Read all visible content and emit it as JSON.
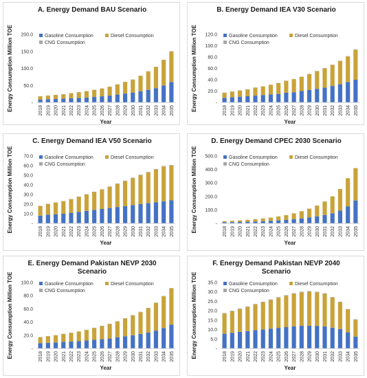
{
  "colors": {
    "gasoline": "#4472C4",
    "diesel": "#C9A33A",
    "cng": "#A6A6A6"
  },
  "chart_data": [
    {
      "type": "bar",
      "stacked": true,
      "title": "A. Energy Demand BAU Scenario",
      "ylabel": "Energy Consumption Million TOE",
      "xlabel": "Year",
      "categories": [
        "2018",
        "2019",
        "2020",
        "2021",
        "2022",
        "2023",
        "2024",
        "2025",
        "2026",
        "2027",
        "2028",
        "2029",
        "2030",
        "2031",
        "2032",
        "2033",
        "2034",
        "2035"
      ],
      "yticks": [
        "-",
        "50.0",
        "100.0",
        "150.0",
        "200.0"
      ],
      "ylim": [
        0,
        200
      ],
      "legend": "top-left",
      "series": [
        {
          "name": "Gasoline Consumption",
          "color": "#4472C4",
          "values": [
            8,
            9,
            10,
            11,
            12,
            13,
            14,
            16,
            18,
            20,
            23,
            26,
            29,
            33,
            37,
            42,
            50,
            60
          ]
        },
        {
          "name": "Diesel Consumption",
          "color": "#C9A33A",
          "values": [
            10,
            11,
            12,
            13,
            15,
            17,
            19,
            21,
            23,
            26,
            30,
            34,
            38,
            45,
            54,
            62,
            75,
            90
          ]
        },
        {
          "name": "CNG Consumption",
          "color": "#A6A6A6",
          "values": [
            0.3,
            0.3,
            0.3,
            0.3,
            0.3,
            0.3,
            0.3,
            0.4,
            0.4,
            0.4,
            0.4,
            0.4,
            0.5,
            0.5,
            0.5,
            0.5,
            0.6,
            0.6
          ]
        }
      ]
    },
    {
      "type": "bar",
      "stacked": true,
      "title": "B. Energy Demand IEA V30 Scenario",
      "ylabel": "Energy Consumption Million TOE",
      "xlabel": "Year",
      "categories": [
        "2018",
        "2019",
        "2020",
        "2021",
        "2022",
        "2023",
        "2024",
        "2025",
        "2026",
        "2027",
        "2028",
        "2029",
        "2030",
        "2031",
        "2032",
        "2033",
        "2034",
        "2035"
      ],
      "yticks": [
        "-",
        "20.0",
        "40.0",
        "60.0",
        "80.0",
        "100.0",
        "120.0"
      ],
      "ylim": [
        0,
        120
      ],
      "legend": "top-left",
      "series": [
        {
          "name": "Gasoline Consumption",
          "color": "#4472C4",
          "values": [
            8,
            9,
            10,
            11,
            12,
            13,
            14,
            15,
            17,
            18,
            20,
            22,
            24,
            26,
            29,
            32,
            36,
            40
          ]
        },
        {
          "name": "Diesel Consumption",
          "color": "#C9A33A",
          "values": [
            9,
            10,
            11,
            12,
            14,
            15,
            17,
            19,
            21,
            23,
            25,
            28,
            31,
            34,
            37,
            41,
            45,
            53
          ]
        },
        {
          "name": "CNG Consumption",
          "color": "#A6A6A6",
          "values": [
            0.3,
            0.3,
            0.3,
            0.3,
            0.3,
            0.3,
            0.3,
            0.4,
            0.4,
            0.4,
            0.4,
            0.4,
            0.5,
            0.5,
            0.5,
            0.5,
            0.6,
            0.6
          ]
        }
      ]
    },
    {
      "type": "bar",
      "stacked": true,
      "title": "C. Energy Demand IEA V50 Scenario",
      "ylabel": "Energy Consumption Million TOE",
      "xlabel": "Year",
      "categories": [
        "2018",
        "2019",
        "2020",
        "2021",
        "2022",
        "2023",
        "2024",
        "2025",
        "2026",
        "2027",
        "2028",
        "2029",
        "2030",
        "2031",
        "2032",
        "2033",
        "2034",
        "2035"
      ],
      "yticks": [
        "-",
        "10.0",
        "20.0",
        "30.0",
        "40.0",
        "50.0",
        "60.0",
        "70.0"
      ],
      "ylim": [
        0,
        70
      ],
      "legend": "top-left",
      "series": [
        {
          "name": "Gasoline Consumption",
          "color": "#4472C4",
          "values": [
            8,
            9,
            9.5,
            10,
            11,
            12,
            13,
            14,
            15,
            16,
            17,
            18,
            19,
            20,
            21,
            22,
            23,
            24
          ]
        },
        {
          "name": "Diesel Consumption",
          "color": "#C9A33A",
          "values": [
            10,
            11,
            12,
            13,
            14,
            15.5,
            17,
            18.5,
            20,
            22,
            24,
            26,
            28,
            30,
            32,
            34,
            36,
            36
          ]
        },
        {
          "name": "CNG Consumption",
          "color": "#A6A6A6",
          "values": [
            0.3,
            0.3,
            0.3,
            0.3,
            0.3,
            0.3,
            0.3,
            0.4,
            0.4,
            0.4,
            0.4,
            0.4,
            0.5,
            0.5,
            0.5,
            0.5,
            0.6,
            0.6
          ]
        }
      ]
    },
    {
      "type": "bar",
      "stacked": true,
      "title": "D. Energy Demand CPEC 2030 Scenario",
      "ylabel": "Energy Consumption Million TOE",
      "xlabel": "Year",
      "categories": [
        "2018",
        "2019",
        "2020",
        "2021",
        "2022",
        "2023",
        "2024",
        "2025",
        "2026",
        "2027",
        "2028",
        "2029",
        "2030",
        "2031",
        "2032",
        "2033",
        "2034",
        "2035"
      ],
      "yticks": [
        "-",
        "100.0",
        "200.0",
        "300.0",
        "400.0",
        "500.0"
      ],
      "ylim": [
        0,
        500
      ],
      "legend": "top-left",
      "series": [
        {
          "name": "Gasoline Consumption",
          "color": "#4472C4",
          "values": [
            8,
            9,
            10,
            12,
            14,
            16,
            19,
            22,
            26,
            31,
            37,
            44,
            52,
            62,
            75,
            95,
            125,
            170
          ]
        },
        {
          "name": "Diesel Consumption",
          "color": "#C9A33A",
          "values": [
            8,
            10,
            12,
            14,
            17,
            20,
            24,
            29,
            35,
            43,
            53,
            65,
            80,
            100,
            125,
            160,
            210,
            240
          ]
        },
        {
          "name": "CNG Consumption",
          "color": "#A6A6A6",
          "values": [
            0.3,
            0.3,
            0.3,
            0.3,
            0.3,
            0.3,
            0.3,
            0.4,
            0.4,
            0.4,
            0.4,
            0.4,
            0.5,
            0.5,
            0.5,
            0.5,
            0.6,
            0.6
          ]
        }
      ]
    },
    {
      "type": "bar",
      "stacked": true,
      "title": "E. Energy Demand Pakistan NEVP 2030 Scenario",
      "title_lines": [
        "E. Energy Demand Pakistan NEVP 2030",
        "Scenario"
      ],
      "ylabel": "Energy Consumption Million TOE",
      "xlabel": "Year",
      "categories": [
        "2018",
        "2019",
        "2020",
        "2021",
        "2022",
        "2023",
        "2024",
        "2025",
        "2026",
        "2027",
        "2028",
        "2029",
        "2030",
        "2031",
        "2032",
        "2033",
        "2034",
        "2035"
      ],
      "yticks": [
        "-",
        "20.0",
        "40.0",
        "60.0",
        "80.0",
        "100.0"
      ],
      "ylim": [
        0,
        100
      ],
      "legend": "top-left",
      "series": [
        {
          "name": "Gasoline Consumption",
          "color": "#4472C4",
          "values": [
            8,
            8.5,
            9,
            10,
            10.5,
            11,
            12,
            13,
            14,
            15,
            17,
            18.5,
            20,
            22,
            24,
            27,
            31,
            36
          ]
        },
        {
          "name": "Diesel Consumption",
          "color": "#C9A33A",
          "values": [
            9,
            10,
            11,
            12,
            13,
            14.5,
            16,
            18,
            20,
            22,
            24,
            27,
            30,
            33,
            37,
            42,
            48,
            55
          ]
        },
        {
          "name": "CNG Consumption",
          "color": "#A6A6A6",
          "values": [
            0.3,
            0.3,
            0.3,
            0.3,
            0.3,
            0.3,
            0.3,
            0.4,
            0.4,
            0.4,
            0.4,
            0.4,
            0.5,
            0.5,
            0.5,
            0.5,
            0.6,
            0.6
          ]
        }
      ]
    },
    {
      "type": "bar",
      "stacked": true,
      "title": "F. Energy Demand Pakistan NEVP 2040 Scenario",
      "title_lines": [
        "F. Energy Demand Pakistan NEVP 2040",
        "Scenario"
      ],
      "ylabel": "Energy Consumption Million TOE",
      "xlabel": "Year",
      "categories": [
        "2018",
        "2019",
        "2020",
        "2021",
        "2022",
        "2023",
        "2024",
        "2025",
        "2026",
        "2027",
        "2028",
        "2029",
        "2030",
        "2031",
        "2032",
        "2033",
        "2034",
        "2035"
      ],
      "yticks": [
        "-",
        "5.0",
        "10.0",
        "15.0",
        "20.0",
        "25.0",
        "30.0",
        "35.0"
      ],
      "ylim": [
        0,
        35
      ],
      "legend": "top-left",
      "series": [
        {
          "name": "Gasoline Consumption",
          "color": "#4472C4",
          "values": [
            7.8,
            8.3,
            8.8,
            9.2,
            9.7,
            10.1,
            10.5,
            10.9,
            11.3,
            11.7,
            12,
            12.1,
            12,
            11.7,
            11,
            10.3,
            8.6,
            6.3
          ]
        },
        {
          "name": "Diesel Consumption",
          "color": "#C9A33A",
          "values": [
            10.7,
            11.4,
            12.1,
            12.8,
            13.6,
            14.4,
            15.2,
            16,
            16.7,
            17.3,
            17.8,
            18,
            17.8,
            17.3,
            16,
            14.2,
            12,
            8.9
          ]
        },
        {
          "name": "CNG Consumption",
          "color": "#A6A6A6",
          "values": [
            0.3,
            0.3,
            0.3,
            0.3,
            0.3,
            0.3,
            0.3,
            0.3,
            0.3,
            0.3,
            0.3,
            0.3,
            0.3,
            0.3,
            0.3,
            0.3,
            0.3,
            0.3
          ]
        }
      ]
    }
  ]
}
